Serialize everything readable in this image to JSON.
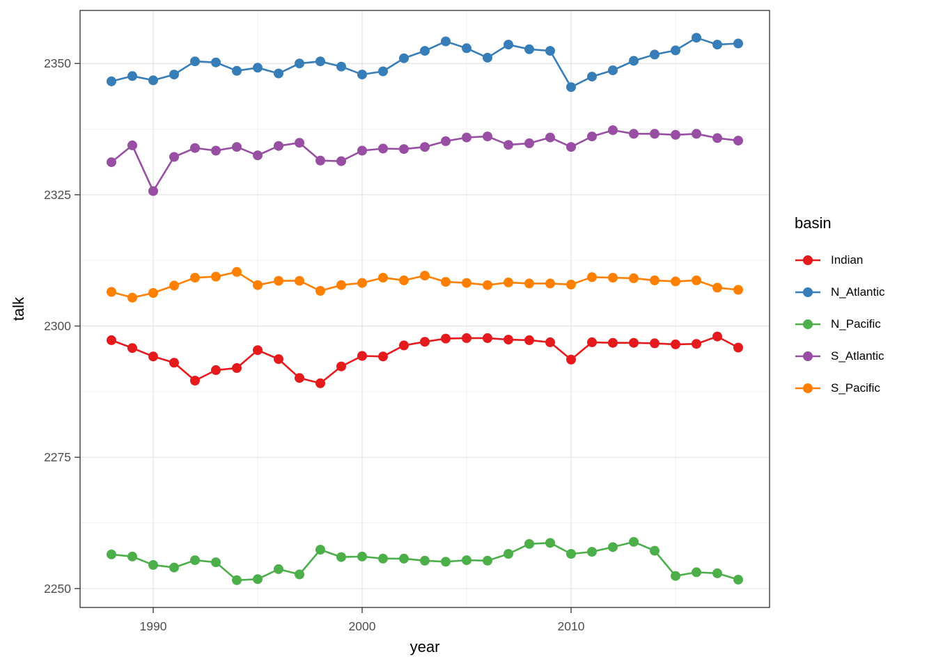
{
  "chart_data": {
    "type": "line",
    "title": "",
    "xlabel": "year",
    "ylabel": "talk",
    "legend_title": "basin",
    "legend_position": "right",
    "grid": true,
    "xlim": [
      1986.5,
      2019.5
    ],
    "ylim": [
      2246.4,
      2360.1
    ],
    "x_major_ticks": [
      1990,
      2000,
      2010
    ],
    "x_minor_gridlines": [
      1995,
      2005,
      2015
    ],
    "y_major_ticks": [
      2250,
      2275,
      2300,
      2325,
      2350
    ],
    "y_minor_gridlines": [
      2262.5,
      2287.5,
      2312.5,
      2337.5
    ],
    "x": [
      1988,
      1989,
      1990,
      1991,
      1992,
      1993,
      1994,
      1995,
      1996,
      1997,
      1998,
      1999,
      2000,
      2001,
      2002,
      2003,
      2004,
      2005,
      2006,
      2007,
      2008,
      2009,
      2010,
      2011,
      2012,
      2013,
      2014,
      2015,
      2016,
      2017,
      2018
    ],
    "series": [
      {
        "name": "Indian",
        "color": "#E41A1C",
        "values": [
          2297.3,
          2295.8,
          2294.2,
          2293.0,
          2289.6,
          2291.6,
          2292.0,
          2295.4,
          2293.7,
          2290.1,
          2289.1,
          2292.3,
          2294.3,
          2294.2,
          2296.3,
          2297.0,
          2297.6,
          2297.7,
          2297.7,
          2297.4,
          2297.3,
          2296.9,
          2293.6,
          2296.9,
          2296.8,
          2296.8,
          2296.7,
          2296.5,
          2296.6,
          2298.0,
          2295.9
        ]
      },
      {
        "name": "N_Atlantic",
        "color": "#377EB8",
        "values": [
          2346.6,
          2347.6,
          2346.8,
          2347.9,
          2350.4,
          2350.2,
          2348.6,
          2349.2,
          2348.1,
          2350.0,
          2350.4,
          2349.4,
          2347.9,
          2348.5,
          2351.0,
          2352.4,
          2354.2,
          2352.9,
          2351.1,
          2353.6,
          2352.7,
          2352.4,
          2345.5,
          2347.5,
          2348.7,
          2350.5,
          2351.7,
          2352.5,
          2354.9,
          2353.6,
          2353.8
        ]
      },
      {
        "name": "N_Pacific",
        "color": "#4DAF4A",
        "values": [
          2256.5,
          2256.1,
          2254.5,
          2254.0,
          2255.4,
          2255.0,
          2251.6,
          2251.8,
          2253.7,
          2252.7,
          2257.4,
          2256.0,
          2256.1,
          2255.7,
          2255.7,
          2255.3,
          2255.1,
          2255.4,
          2255.3,
          2256.6,
          2258.5,
          2258.7,
          2256.6,
          2257.0,
          2257.9,
          2258.9,
          2257.2,
          2252.4,
          2253.1,
          2252.9,
          2251.7
        ]
      },
      {
        "name": "S_Atlantic",
        "color": "#984EA3",
        "values": [
          2331.2,
          2334.4,
          2325.7,
          2332.2,
          2333.9,
          2333.4,
          2334.1,
          2332.5,
          2334.3,
          2334.9,
          2331.5,
          2331.4,
          2333.4,
          2333.8,
          2333.7,
          2334.1,
          2335.2,
          2335.9,
          2336.1,
          2334.5,
          2334.8,
          2335.9,
          2334.1,
          2336.1,
          2337.3,
          2336.6,
          2336.6,
          2336.4,
          2336.6,
          2335.8,
          2335.3
        ]
      },
      {
        "name": "S_Pacific",
        "color": "#FF7F00",
        "values": [
          2306.5,
          2305.4,
          2306.3,
          2307.7,
          2309.2,
          2309.4,
          2310.3,
          2307.8,
          2308.6,
          2308.6,
          2306.7,
          2307.8,
          2308.2,
          2309.2,
          2308.7,
          2309.6,
          2308.4,
          2308.2,
          2307.8,
          2308.3,
          2308.1,
          2308.1,
          2307.9,
          2309.3,
          2309.2,
          2309.1,
          2308.7,
          2308.5,
          2308.7,
          2307.3,
          2306.9
        ]
      }
    ]
  }
}
